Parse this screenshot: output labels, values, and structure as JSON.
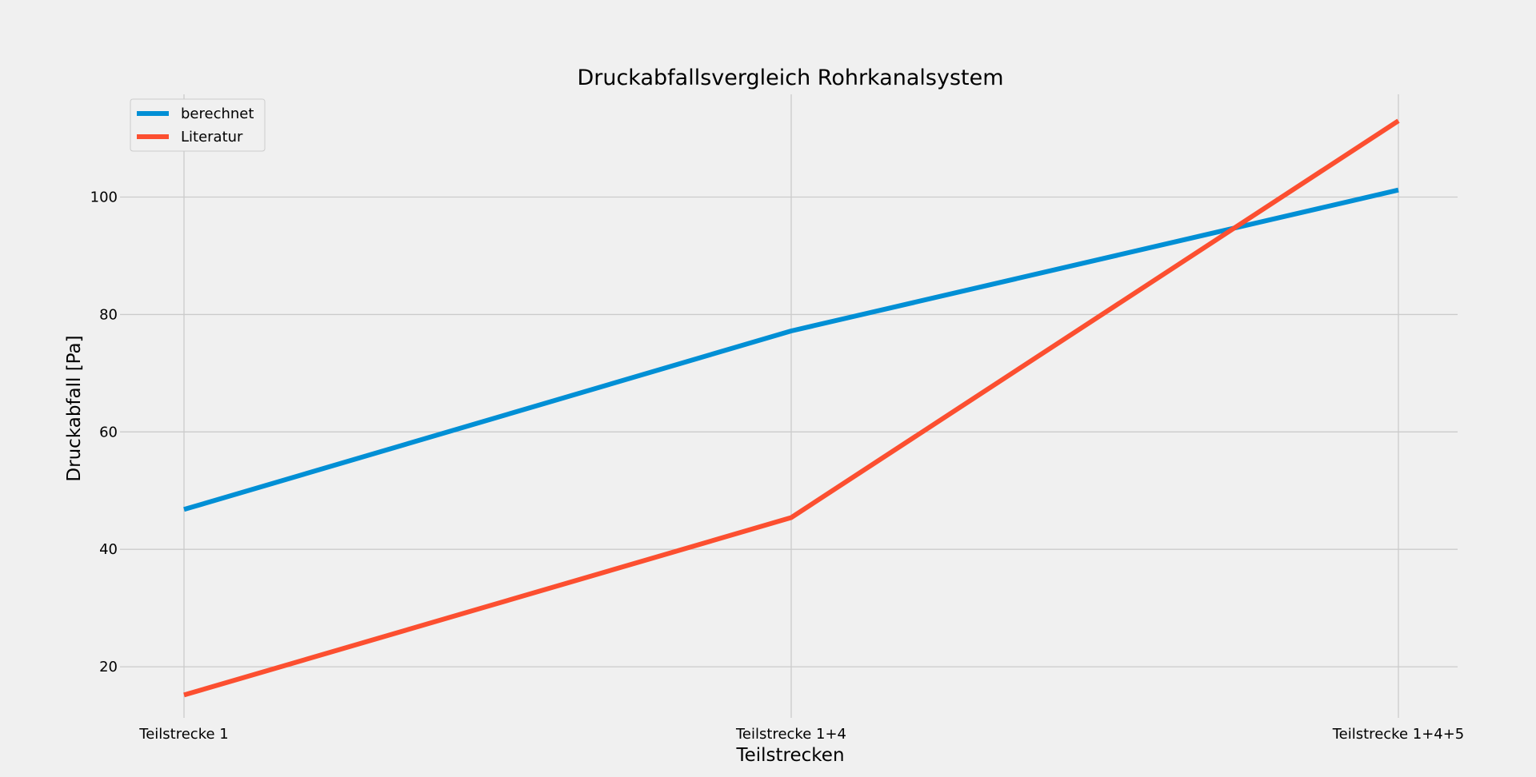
{
  "chart_data": {
    "type": "line",
    "title": "Druckabfallsvergleich Rohrkanalsystem",
    "xlabel": "Teilstrecken",
    "ylabel": "Druckabfall [Pa]",
    "categories": [
      "Teilstrecke 1",
      "Teilstrecke 1+4",
      "Teilstrecke 1+4+5"
    ],
    "series": [
      {
        "name": "berechnet",
        "values": [
          46.8,
          77.2,
          101.2
        ],
        "color": "#008fd5"
      },
      {
        "name": "Literatur",
        "values": [
          15.2,
          45.4,
          113.0
        ],
        "color": "#fc4f30"
      }
    ],
    "yticks": [
      20,
      40,
      60,
      80,
      100
    ],
    "ylim": [
      11.3,
      117.5
    ],
    "grid": true,
    "legend_position": "top-left",
    "background": "#f0f0f0",
    "grid_color": "#cbcbcb"
  }
}
